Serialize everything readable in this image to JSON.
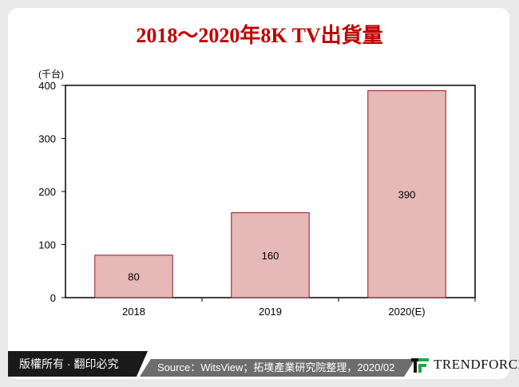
{
  "chart_data": {
    "type": "bar",
    "title": "2018～2020年8K TV出貨量",
    "ylabel": "(千台)",
    "categories": [
      "2018",
      "2019",
      "2020(E)"
    ],
    "values": [
      80,
      160,
      390
    ],
    "data_labels": [
      "80",
      "160",
      "390"
    ],
    "ylim": [
      0,
      400
    ],
    "yticks": [
      "0",
      "100",
      "200",
      "300",
      "400"
    ],
    "grid": false,
    "bar_color": "#e6b8b7",
    "bar_border": "#8b1a1a"
  },
  "footer": {
    "copyright": "版權所有 · 翻印必究",
    "source": "Source：WitsView；拓墣產業研究院整理，2020/02",
    "logo": "TRENDFORCE"
  },
  "colors": {
    "title": "#c00000",
    "accent": "#1aa84b"
  }
}
